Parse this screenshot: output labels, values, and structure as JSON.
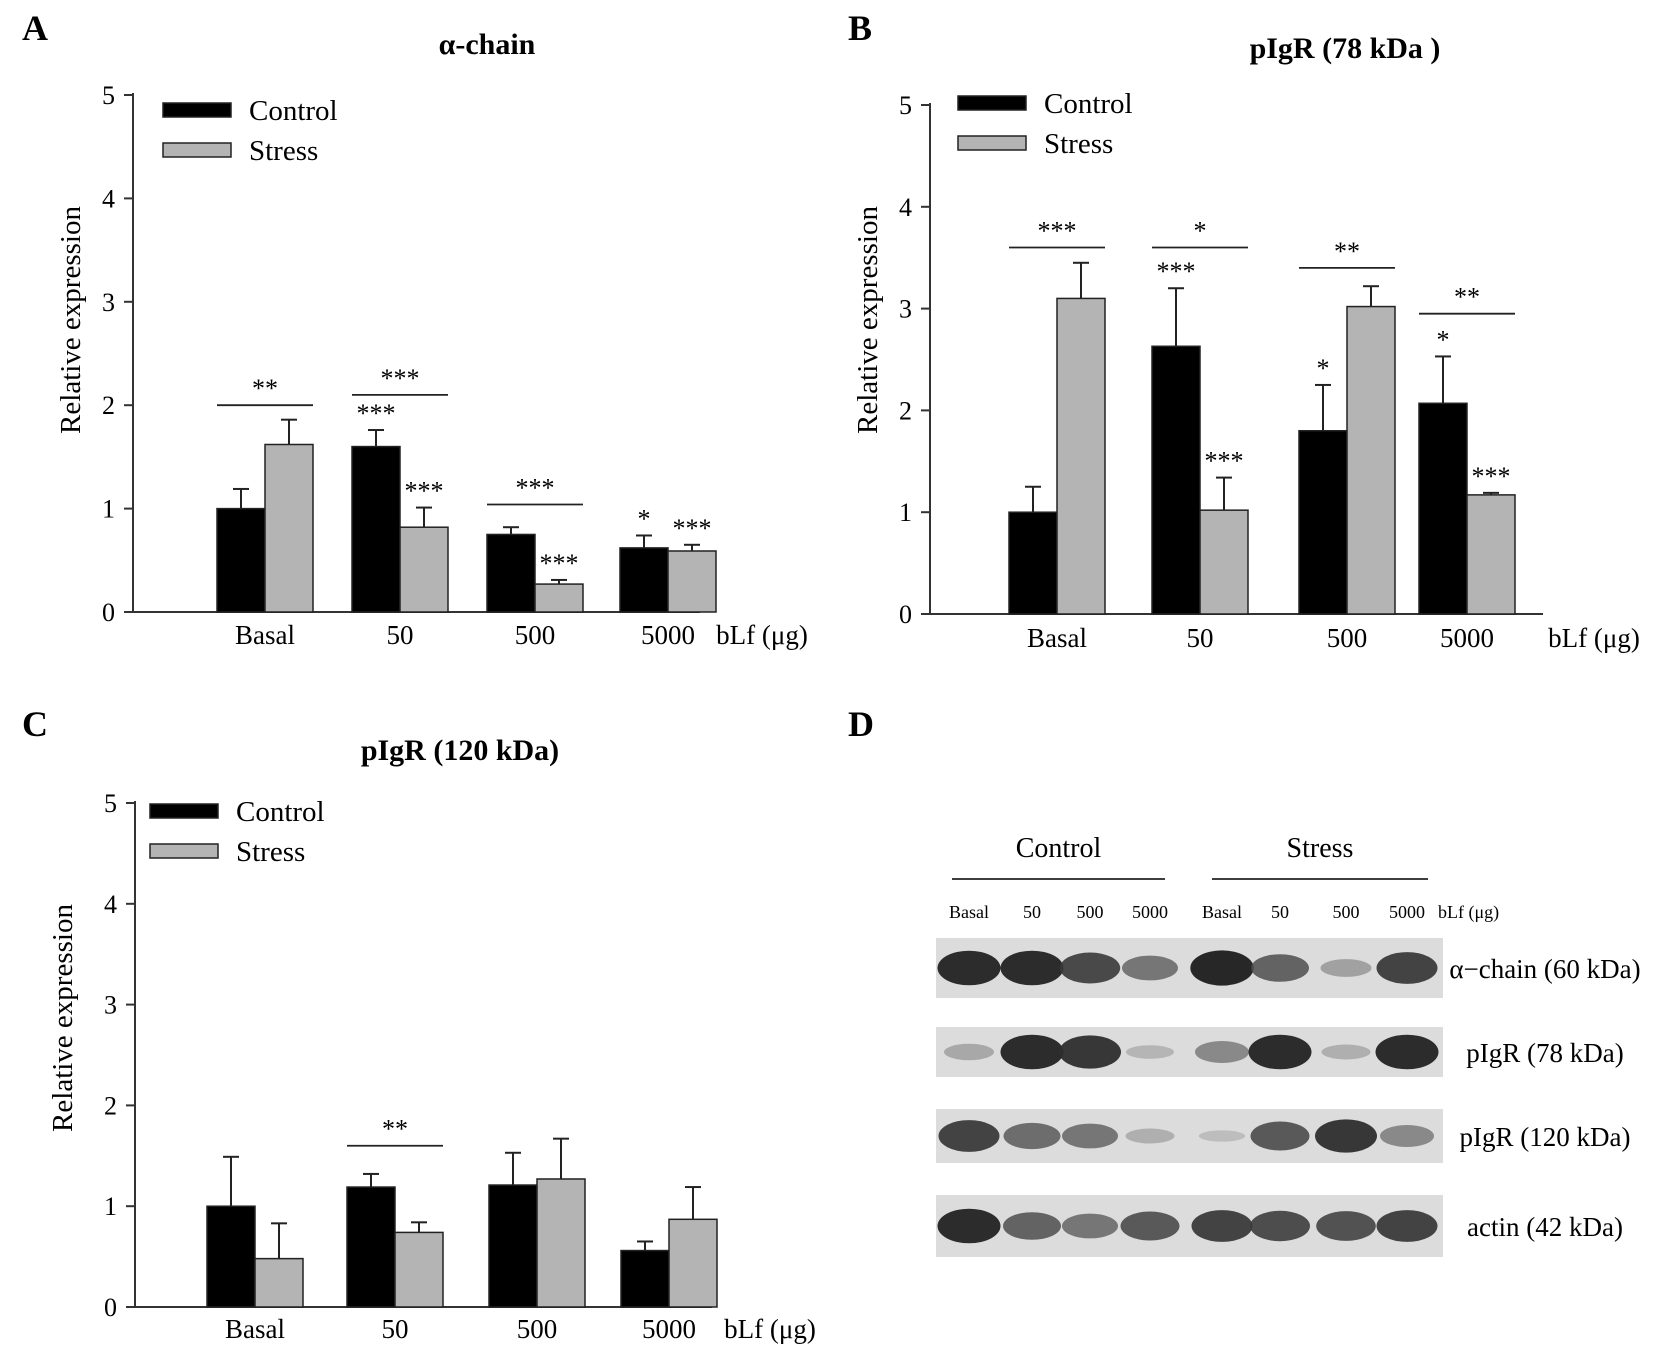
{
  "panels": [
    {
      "letter": "A",
      "chart_data": {
        "type": "bar",
        "title": "α-chain",
        "ylabel": "Relative expression",
        "xlabel": "bLf (μg)",
        "categories": [
          "Basal",
          "50",
          "500",
          "5000"
        ],
        "ylim": [
          0,
          5
        ],
        "yticks": [
          "0",
          "1",
          "2",
          "3",
          "4",
          "5"
        ],
        "legend_position": "top-left",
        "series": [
          {
            "name": "Control",
            "color": "#000000",
            "values": [
              1.0,
              1.6,
              0.75,
              0.62
            ],
            "errors": [
              0.19,
              0.16,
              0.07,
              0.12
            ]
          },
          {
            "name": "Stress",
            "color": "#b4b4b4",
            "values": [
              1.62,
              0.82,
              0.27,
              0.59
            ],
            "errors": [
              0.24,
              0.19,
              0.04,
              0.06
            ]
          }
        ],
        "bar_annotations": [
          {
            "series": 0,
            "category": 1,
            "text": "***"
          },
          {
            "series": 0,
            "category": 3,
            "text": "*"
          },
          {
            "series": 1,
            "category": 1,
            "text": "***"
          },
          {
            "series": 1,
            "category": 2,
            "text": "***"
          },
          {
            "series": 1,
            "category": 3,
            "text": "***"
          }
        ],
        "comparisons": [
          {
            "category": 0,
            "text": "**",
            "y": 2.0
          },
          {
            "category": 1,
            "text": "***",
            "y": 2.1
          },
          {
            "category": 2,
            "text": "***",
            "y": 1.04
          }
        ]
      }
    },
    {
      "letter": "B",
      "chart_data": {
        "type": "bar",
        "title": "pIgR (78 kDa )",
        "ylabel": "Relative expression",
        "xlabel": "bLf (μg)",
        "categories": [
          "Basal",
          "50",
          "500",
          "5000"
        ],
        "ylim": [
          0,
          5
        ],
        "yticks": [
          "0",
          "1",
          "2",
          "3",
          "4",
          "5"
        ],
        "legend_position": "top-left",
        "series": [
          {
            "name": "Control",
            "color": "#000000",
            "values": [
              1.0,
              2.63,
              1.8,
              2.07
            ],
            "errors": [
              0.25,
              0.57,
              0.45,
              0.46
            ]
          },
          {
            "name": "Stress",
            "color": "#b4b4b4",
            "values": [
              3.1,
              1.02,
              3.02,
              1.17
            ],
            "errors": [
              0.35,
              0.32,
              0.2,
              0.02
            ]
          }
        ],
        "bar_annotations": [
          {
            "series": 0,
            "category": 1,
            "text": "***"
          },
          {
            "series": 0,
            "category": 2,
            "text": "*"
          },
          {
            "series": 0,
            "category": 3,
            "text": "*"
          },
          {
            "series": 1,
            "category": 1,
            "text": "***"
          },
          {
            "series": 1,
            "category": 3,
            "text": "***"
          }
        ],
        "comparisons": [
          {
            "category": 0,
            "text": "***",
            "y": 3.6
          },
          {
            "category": 1,
            "text": "*",
            "y": 3.6
          },
          {
            "category": 2,
            "text": "**",
            "y": 3.4
          },
          {
            "category": 3,
            "text": "**",
            "y": 2.95
          }
        ]
      }
    },
    {
      "letter": "C",
      "chart_data": {
        "type": "bar",
        "title": "pIgR  (120 kDa)",
        "ylabel": "Relative expression",
        "xlabel": "bLf (μg)",
        "categories": [
          "Basal",
          "50",
          "500",
          "5000"
        ],
        "ylim": [
          0,
          5
        ],
        "yticks": [
          "0",
          "1",
          "2",
          "3",
          "4",
          "5"
        ],
        "legend_position": "top-left",
        "series": [
          {
            "name": "Control",
            "color": "#000000",
            "values": [
              1.0,
              1.19,
              1.21,
              0.56
            ],
            "errors": [
              0.49,
              0.13,
              0.32,
              0.09
            ]
          },
          {
            "name": "Stress",
            "color": "#b4b4b4",
            "values": [
              0.48,
              0.74,
              1.27,
              0.87
            ],
            "errors": [
              0.35,
              0.1,
              0.4,
              0.32
            ]
          }
        ],
        "bar_annotations": [],
        "comparisons": [
          {
            "category": 1,
            "text": "**",
            "y": 1.6
          }
        ]
      }
    }
  ],
  "blot": {
    "letter": "D",
    "group_labels": [
      "Control",
      "Stress"
    ],
    "lane_labels": [
      "Basal",
      "50",
      "500",
      "5000",
      "Basal",
      "50",
      "500",
      "5000"
    ],
    "dose_label": "bLf (μg)",
    "rows": [
      {
        "label": "α−chain (60 kDa)",
        "intensities": [
          0.95,
          0.95,
          0.82,
          0.6,
          0.97,
          0.7,
          0.35,
          0.85
        ]
      },
      {
        "label": "pIgR (78 kDa)",
        "intensities": [
          0.3,
          0.95,
          0.9,
          0.2,
          0.5,
          0.95,
          0.25,
          0.95
        ]
      },
      {
        "label": "pIgR (120 kDa)",
        "intensities": [
          0.85,
          0.65,
          0.6,
          0.25,
          0.12,
          0.75,
          0.9,
          0.5
        ]
      },
      {
        "label": "actin (42 kDa)",
        "intensities": [
          0.95,
          0.7,
          0.6,
          0.75,
          0.85,
          0.8,
          0.78,
          0.85
        ]
      }
    ]
  }
}
